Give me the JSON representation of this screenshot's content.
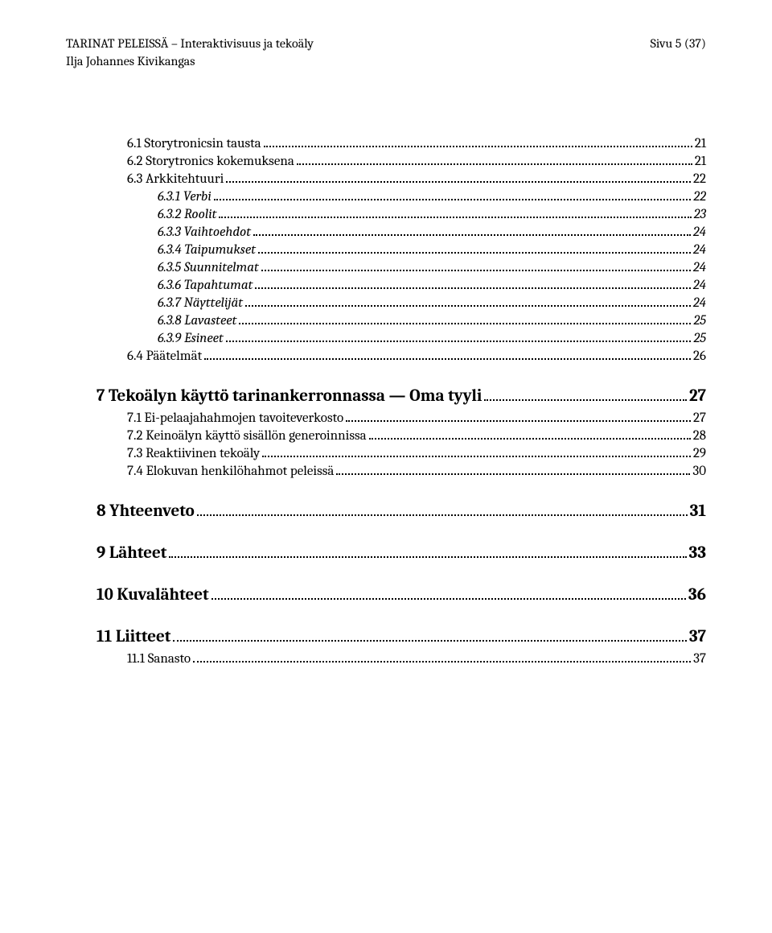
{
  "header": {
    "title_line1": "TARINAT PELEISSÄ – Interaktivisuus ja tekoäly",
    "author": "Ilja Johannes Kivikangas",
    "page_indicator": "Sivu 5 (37)"
  },
  "toc": [
    {
      "level": 1,
      "label": "6.1 Storytronicsin tausta",
      "page": "21"
    },
    {
      "level": 1,
      "label": "6.2 Storytronics kokemuksena",
      "page": "21"
    },
    {
      "level": 1,
      "label": "6.3 Arkkitehtuuri",
      "page": "22"
    },
    {
      "level": 2,
      "label": "6.3.1 Verbi",
      "page": "22"
    },
    {
      "level": 2,
      "label": "6.3.2 Roolit",
      "page": "23"
    },
    {
      "level": 2,
      "label": "6.3.3 Vaihtoehdot",
      "page": "24"
    },
    {
      "level": 2,
      "label": "6.3.4 Taipumukset",
      "page": "24"
    },
    {
      "level": 2,
      "label": "6.3.5 Suunnitelmat",
      "page": "24"
    },
    {
      "level": 2,
      "label": "6.3.6 Tapahtumat",
      "page": "24"
    },
    {
      "level": 2,
      "label": "6.3.7 Näyttelijät",
      "page": "24"
    },
    {
      "level": 2,
      "label": "6.3.8 Lavasteet",
      "page": "25"
    },
    {
      "level": 2,
      "label": "6.3.9 Esineet",
      "page": "25"
    },
    {
      "level": 1,
      "label": "6.4 Päätelmät",
      "page": "26"
    },
    {
      "level": 0,
      "label": "7 Tekoälyn käyttö tarinankerronnassa — Oma tyyli",
      "page": "27"
    },
    {
      "level": 1,
      "label": "7.1 Ei-pelaajahahmojen tavoiteverkosto",
      "page": "27"
    },
    {
      "level": 1,
      "label": "7.2 Keinoälyn käyttö sisällön generoinnissa",
      "page": "28"
    },
    {
      "level": 1,
      "label": "7.3 Reaktiivinen tekoäly",
      "page": "29"
    },
    {
      "level": 1,
      "label": "7.4 Elokuvan henkilöhahmot peleissä",
      "page": "30"
    },
    {
      "level": 0,
      "label": "8 Yhteenveto",
      "page": "31"
    },
    {
      "level": 0,
      "label": "9 Lähteet",
      "page": "33"
    },
    {
      "level": 0,
      "label": "10 Kuvalähteet",
      "page": "36"
    },
    {
      "level": 0,
      "label": "11 Liitteet",
      "page": "37"
    },
    {
      "level": 1,
      "label": "11.1 Sanasto",
      "page": "37"
    }
  ]
}
